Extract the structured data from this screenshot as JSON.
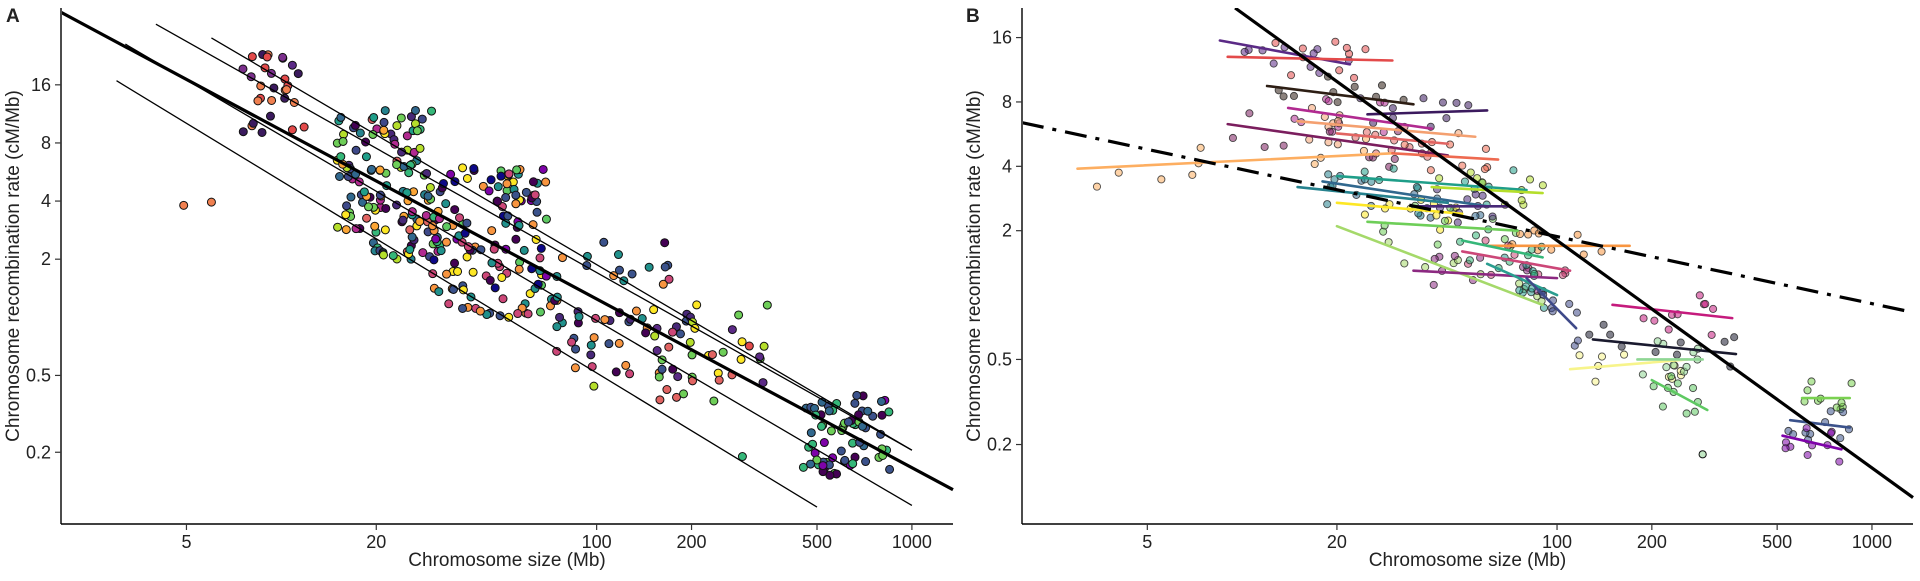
{
  "figure": {
    "panel_a_tag": "A",
    "panel_b_tag": "B"
  },
  "chart_data": [
    {
      "panel": "A",
      "type": "scatter",
      "xscale": "log",
      "yscale": "log",
      "xlabel": "Chromosome size (Mb)",
      "ylabel": "Chromosome recombination rate (cM/Mb)",
      "xticks": [
        5,
        20,
        100,
        200,
        500,
        1000
      ],
      "yticks": [
        0.2,
        0.5,
        2,
        4,
        8,
        16
      ],
      "xlim": [
        2.0,
        1350
      ],
      "ylim": [
        0.085,
        40
      ],
      "grid": false,
      "legend": "none",
      "reference_lines": [
        {
          "style": "thick",
          "x": [
            2.0,
            1350
          ],
          "y": [
            38,
            0.128
          ]
        },
        {
          "style": "thin",
          "x": [
            3.2,
            1000
          ],
          "y": [
            26,
            0.106
          ]
        },
        {
          "style": "thin",
          "x": [
            4.0,
            1000
          ],
          "y": [
            33,
            0.205
          ]
        },
        {
          "style": "thin",
          "x": [
            6.0,
            1000
          ],
          "y": [
            28,
            0.205
          ]
        },
        {
          "style": "thin",
          "x": [
            3.0,
            500
          ],
          "y": [
            16.8,
            0.104
          ]
        }
      ],
      "points_note": "Several hundred points; per-species colours from a viridis-to-magma palette (about 60 species). Approximate clusters listed below.",
      "clusters": [
        {
          "x_range": [
            7.5,
            12
          ],
          "y_range": [
            9,
            24
          ],
          "n": 30,
          "colors": [
            "#5b2a86",
            "#7b2f8c",
            "#3b1a5e",
            "#e34a4a",
            "#f08050"
          ]
        },
        {
          "x_range": [
            15,
            32
          ],
          "y_range": [
            2,
            12
          ],
          "n": 140,
          "colors": [
            "#fde725",
            "#b5de2b",
            "#6ece58",
            "#35b779",
            "#1f9e89",
            "#26828e",
            "#31688e",
            "#3e4989",
            "#482878",
            "#440154",
            "#fca636",
            "#e16462",
            "#b12a90"
          ]
        },
        {
          "x_range": [
            30,
            70
          ],
          "y_range": [
            1,
            6
          ],
          "n": 130,
          "colors": [
            "#5ec962",
            "#21918c",
            "#3b528b",
            "#440154",
            "#fde725",
            "#f89540",
            "#cc4778",
            "#7e03a8",
            "#0d0887"
          ]
        },
        {
          "x_range": [
            70,
            200
          ],
          "y_range": [
            0.5,
            2.5
          ],
          "n": 60,
          "colors": [
            "#3b528b",
            "#21918c",
            "#440154",
            "#482878",
            "#f89540",
            "#cc4778"
          ]
        },
        {
          "x_range": [
            150,
            350
          ],
          "y_range": [
            0.35,
            1.2
          ],
          "n": 35,
          "colors": [
            "#b5de2b",
            "#fde725",
            "#6ece58",
            "#e16462",
            "#5b2a86"
          ]
        },
        {
          "x_range": [
            450,
            850
          ],
          "y_range": [
            0.15,
            0.4
          ],
          "n": 70,
          "colors": [
            "#3b528b",
            "#440154",
            "#7e03a8",
            "#6ece58",
            "#35b779",
            "#31688e"
          ]
        }
      ],
      "outliers": [
        {
          "x": 4.9,
          "y": 3.8,
          "color": "#f08050"
        },
        {
          "x": 6.0,
          "y": 3.95,
          "color": "#f08050"
        },
        {
          "x": 16,
          "y": 3.4,
          "color": "#fde725"
        },
        {
          "x": 98,
          "y": 0.44,
          "color": "#b5de2b"
        },
        {
          "x": 305,
          "y": 0.71,
          "color": "#e34a4a"
        },
        {
          "x": 290,
          "y": 0.19,
          "color": "#35b779"
        }
      ]
    },
    {
      "panel": "B",
      "type": "scatter",
      "xscale": "log",
      "yscale": "log",
      "xlabel": "Chromosome size (Mb)",
      "ylabel": "Chromosome recombination rate (cM/Mb)",
      "xticks": [
        5,
        20,
        100,
        200,
        500,
        1000
      ],
      "yticks": [
        0.2,
        0.5,
        2,
        4,
        8,
        16
      ],
      "xlim": [
        2.0,
        1350
      ],
      "ylim": [
        0.085,
        22
      ],
      "grid": false,
      "legend": "none",
      "reference_lines": [
        {
          "style": "thick",
          "x": [
            9.5,
            1350
          ],
          "y": [
            22,
            0.113
          ]
        },
        {
          "style": "dashdot",
          "x": [
            2.0,
            1350
          ],
          "y": [
            6.4,
            0.83
          ]
        }
      ],
      "points_note": "Points are semi-transparent with a per-species regression segment (one coloured line per species).",
      "species_lines": [
        {
          "color": "#5b2a86",
          "x": [
            8.5,
            22
          ],
          "y": [
            15.5,
            12
          ]
        },
        {
          "color": "#e34a4a",
          "x": [
            9,
            30
          ],
          "y": [
            13,
            12.5
          ]
        },
        {
          "color": "#2d1e14",
          "x": [
            12,
            35
          ],
          "y": [
            9.5,
            7.8
          ]
        },
        {
          "color": "#b12a90",
          "x": [
            14,
            40
          ],
          "y": [
            7.5,
            6.0
          ]
        },
        {
          "color": "#3b1a5e",
          "x": [
            25,
            60
          ],
          "y": [
            7.0,
            7.3
          ]
        },
        {
          "color": "#f4a070",
          "x": [
            15,
            55
          ],
          "y": [
            6.5,
            5.5
          ]
        },
        {
          "color": "#7b1e5e",
          "x": [
            9,
            45
          ],
          "y": [
            6.3,
            4.5
          ]
        },
        {
          "color": "#e16462",
          "x": [
            20,
            45
          ],
          "y": [
            5.7,
            5.1
          ]
        },
        {
          "color": "#fdae61",
          "x": [
            3.0,
            30
          ],
          "y": [
            3.9,
            4.6
          ]
        },
        {
          "color": "#ee6a50",
          "x": [
            30,
            65
          ],
          "y": [
            4.6,
            4.3
          ]
        },
        {
          "color": "#31688e",
          "x": [
            18,
            60
          ],
          "y": [
            3.4,
            2.6
          ]
        },
        {
          "color": "#1f9e89",
          "x": [
            20,
            80
          ],
          "y": [
            3.6,
            3.1
          ]
        },
        {
          "color": "#b5de2b",
          "x": [
            40,
            90
          ],
          "y": [
            3.2,
            3.0
          ]
        },
        {
          "color": "#fde725",
          "x": [
            20,
            50
          ],
          "y": [
            2.7,
            2.4
          ]
        },
        {
          "color": "#6ece58",
          "x": [
            25,
            75
          ],
          "y": [
            2.2,
            2.0
          ]
        },
        {
          "color": "#26828e",
          "x": [
            15,
            45
          ],
          "y": [
            3.2,
            2.7
          ]
        },
        {
          "color": "#482878",
          "x": [
            35,
            70
          ],
          "y": [
            2.6,
            2.6
          ]
        },
        {
          "color": "#f89540",
          "x": [
            60,
            170
          ],
          "y": [
            1.7,
            1.7
          ]
        },
        {
          "color": "#cc4778",
          "x": [
            50,
            110
          ],
          "y": [
            1.6,
            1.3
          ]
        },
        {
          "color": "#a5d96a",
          "x": [
            20,
            90
          ],
          "y": [
            2.1,
            0.9
          ]
        },
        {
          "color": "#8c2981",
          "x": [
            35,
            100
          ],
          "y": [
            1.3,
            1.2
          ]
        },
        {
          "color": "#2a9d8f",
          "x": [
            60,
            100
          ],
          "y": [
            1.4,
            1.0
          ]
        },
        {
          "color": "#35b779",
          "x": [
            50,
            90
          ],
          "y": [
            1.8,
            1.5
          ]
        },
        {
          "color": "#3e4989",
          "x": [
            80,
            115
          ],
          "y": [
            1.2,
            0.7
          ]
        },
        {
          "color": "#c51b7d",
          "x": [
            150,
            360
          ],
          "y": [
            0.9,
            0.78
          ]
        },
        {
          "color": "#1a1a2e",
          "x": [
            130,
            370
          ],
          "y": [
            0.62,
            0.53
          ]
        },
        {
          "color": "#f7f48b",
          "x": [
            110,
            260
          ],
          "y": [
            0.45,
            0.5
          ]
        },
        {
          "color": "#8fd694",
          "x": [
            180,
            290
          ],
          "y": [
            0.5,
            0.5
          ]
        },
        {
          "color": "#5ec962",
          "x": [
            200,
            300
          ],
          "y": [
            0.4,
            0.29
          ]
        },
        {
          "color": "#7ad151",
          "x": [
            600,
            850
          ],
          "y": [
            0.33,
            0.33
          ]
        },
        {
          "color": "#3b528b",
          "x": [
            550,
            850
          ],
          "y": [
            0.26,
            0.24
          ]
        },
        {
          "color": "#7e03a8",
          "x": [
            520,
            800
          ],
          "y": [
            0.22,
            0.19
          ]
        }
      ],
      "outliers": [
        {
          "x": 290,
          "y": 0.18,
          "color": "#8fd694"
        }
      ]
    }
  ]
}
